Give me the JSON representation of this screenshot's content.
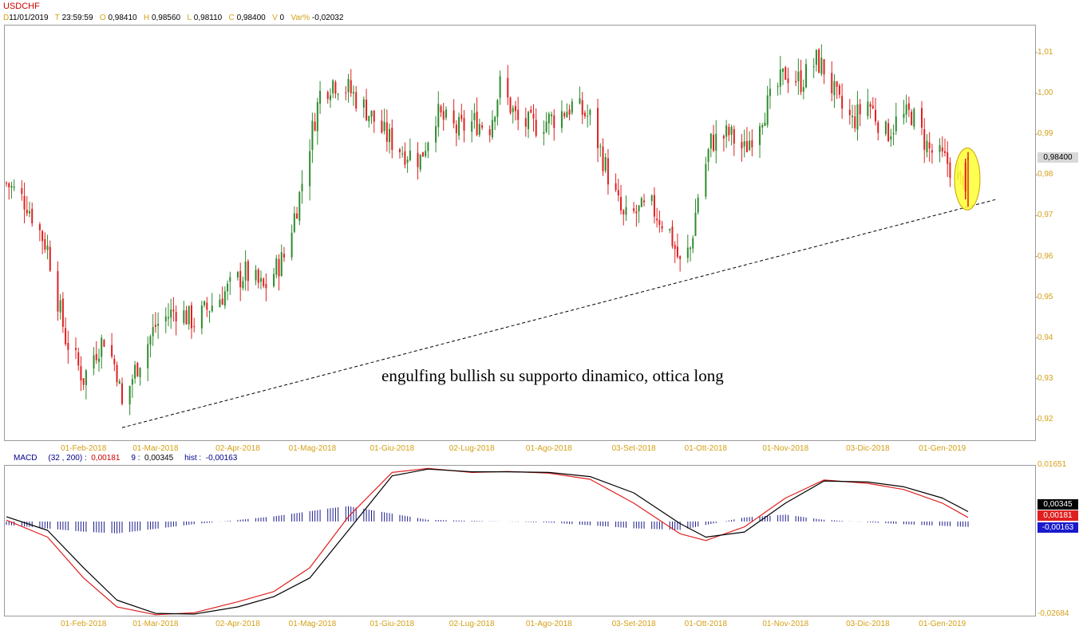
{
  "symbol": "USDCHF",
  "header": {
    "d_label": "D",
    "d_value": "11/01/2019",
    "t_label": "T",
    "t_value": "23:59:59",
    "o_label": "O",
    "o_value": "0,98410",
    "h_label": "H",
    "h_value": "0,98560",
    "l_label": "L",
    "l_value": "0,98110",
    "c_label": "C",
    "c_value": "0,98400",
    "v_label": "V",
    "v_value": "0",
    "var_label": "Var%",
    "var_value": "-0,02032"
  },
  "last_price": "0,98400",
  "annotation": "engulfing bullish su supporto dinamico, ottica long",
  "macd_header": {
    "label": "MACD",
    "params": "(32 , 200) :",
    "macd_value": "0,00181",
    "signal_label": "9 :",
    "signal_value": "0,00345",
    "hist_label": "hist :",
    "hist_value": "-0,00163"
  },
  "macd_axis": {
    "top": "0,01651",
    "bottom": "-0,02684"
  },
  "macd_boxes": {
    "signal": "0,00345",
    "macd": "0,00181",
    "hist": "-0,00163"
  },
  "colors": {
    "up": "#2e8b2e",
    "down": "#e02020",
    "axis_text": "#d4a017",
    "macd": "#e02020",
    "signal": "#000000",
    "hist": "#1a1a8c",
    "highlight": "#ffff33"
  },
  "chart_data": [
    {
      "type": "candlestick",
      "title": "USDCHF",
      "y_ticks": [
        "1,01",
        "1,00",
        "0,99",
        "0,98",
        "0,97",
        "0,96",
        "0,95",
        "0,94",
        "0,93",
        "0,92"
      ],
      "ylim": [
        0.9165,
        1.0185
      ],
      "x_ticks": [
        "01-Feb-2018",
        "01-Mar-2018",
        "02-Apr-2018",
        "01-Mag-2018",
        "01-Giu-2018",
        "02-Lug-2018",
        "01-Ago-2018",
        "03-Set-2018",
        "01-Ott-2018",
        "01-Nov-2018",
        "03-Dic-2018",
        "01-Gen-2019"
      ],
      "close_path": [
        {
          "date": "2018-01-02",
          "close": 0.978
        },
        {
          "date": "2018-01-10",
          "close": 0.973
        },
        {
          "date": "2018-01-18",
          "close": 0.962
        },
        {
          "date": "2018-01-25",
          "close": 0.94
        },
        {
          "date": "2018-02-01",
          "close": 0.93
        },
        {
          "date": "2018-02-05",
          "close": 0.936
        },
        {
          "date": "2018-02-09",
          "close": 0.94
        },
        {
          "date": "2018-02-14",
          "close": 0.932
        },
        {
          "date": "2018-02-16",
          "close": 0.923
        },
        {
          "date": "2018-02-21",
          "close": 0.932
        },
        {
          "date": "2018-03-01",
          "close": 0.943
        },
        {
          "date": "2018-03-09",
          "close": 0.947
        },
        {
          "date": "2018-03-16",
          "close": 0.944
        },
        {
          "date": "2018-03-26",
          "close": 0.95
        },
        {
          "date": "2018-04-05",
          "close": 0.956
        },
        {
          "date": "2018-04-12",
          "close": 0.952
        },
        {
          "date": "2018-04-20",
          "close": 0.96
        },
        {
          "date": "2018-04-26",
          "close": 0.975
        },
        {
          "date": "2018-04-30",
          "close": 0.988
        },
        {
          "date": "2018-05-04",
          "close": 1.0
        },
        {
          "date": "2018-05-09",
          "close": 1.003
        },
        {
          "date": "2018-05-15",
          "close": 1.001
        },
        {
          "date": "2018-05-22",
          "close": 0.996
        },
        {
          "date": "2018-05-29",
          "close": 0.99
        },
        {
          "date": "2018-06-05",
          "close": 0.986
        },
        {
          "date": "2018-06-12",
          "close": 0.984
        },
        {
          "date": "2018-06-18",
          "close": 0.995
        },
        {
          "date": "2018-06-26",
          "close": 0.991
        },
        {
          "date": "2018-07-03",
          "close": 0.993
        },
        {
          "date": "2018-07-09",
          "close": 0.992
        },
        {
          "date": "2018-07-13",
          "close": 1.002
        },
        {
          "date": "2018-07-20",
          "close": 0.993
        },
        {
          "date": "2018-07-26",
          "close": 0.992
        },
        {
          "date": "2018-08-03",
          "close": 0.994
        },
        {
          "date": "2018-08-10",
          "close": 0.997
        },
        {
          "date": "2018-08-17",
          "close": 0.994
        },
        {
          "date": "2018-08-24",
          "close": 0.98
        },
        {
          "date": "2018-08-30",
          "close": 0.969
        },
        {
          "date": "2018-09-05",
          "close": 0.971
        },
        {
          "date": "2018-09-10",
          "close": 0.972
        },
        {
          "date": "2018-09-17",
          "close": 0.966
        },
        {
          "date": "2018-09-21",
          "close": 0.958
        },
        {
          "date": "2018-09-25",
          "close": 0.962
        },
        {
          "date": "2018-09-28",
          "close": 0.975
        },
        {
          "date": "2018-10-03",
          "close": 0.988
        },
        {
          "date": "2018-10-10",
          "close": 0.99
        },
        {
          "date": "2018-10-16",
          "close": 0.986
        },
        {
          "date": "2018-10-22",
          "close": 0.994
        },
        {
          "date": "2018-10-26",
          "close": 0.998
        },
        {
          "date": "2018-11-01",
          "close": 1.005
        },
        {
          "date": "2018-11-07",
          "close": 1.003
        },
        {
          "date": "2018-11-13",
          "close": 1.008
        },
        {
          "date": "2018-11-16",
          "close": 1.006
        },
        {
          "date": "2018-11-22",
          "close": 0.997
        },
        {
          "date": "2018-11-27",
          "close": 0.993
        },
        {
          "date": "2018-12-03",
          "close": 0.998
        },
        {
          "date": "2018-12-10",
          "close": 0.99
        },
        {
          "date": "2018-12-14",
          "close": 0.993
        },
        {
          "date": "2018-12-20",
          "close": 0.995
        },
        {
          "date": "2018-12-27",
          "close": 0.986
        },
        {
          "date": "2019-01-03",
          "close": 0.983
        },
        {
          "date": "2019-01-08",
          "close": 0.978
        },
        {
          "date": "2019-01-11",
          "close": 0.984
        }
      ],
      "support_trendline": {
        "from": {
          "date": "2018-02-16",
          "value": 0.918
        },
        "to": {
          "date": "2019-01-22",
          "value": 0.974
        }
      },
      "highlight": {
        "date": "2019-01-11",
        "y_range": [
          0.972,
          0.986
        ],
        "shape": "ellipse"
      }
    },
    {
      "type": "line",
      "title": "MACD (32 , 200)",
      "ylim": [
        -0.02684,
        0.01651
      ],
      "series": [
        {
          "name": "MACD",
          "color": "#e02020",
          "points": [
            {
              "date": "2018-01-02",
              "value": 0.001
            },
            {
              "date": "2018-01-18",
              "value": -0.004
            },
            {
              "date": "2018-02-01",
              "value": -0.016
            },
            {
              "date": "2018-02-14",
              "value": -0.0245
            },
            {
              "date": "2018-03-01",
              "value": -0.0268
            },
            {
              "date": "2018-03-16",
              "value": -0.0262
            },
            {
              "date": "2018-04-02",
              "value": -0.023
            },
            {
              "date": "2018-04-16",
              "value": -0.02
            },
            {
              "date": "2018-04-30",
              "value": -0.013
            },
            {
              "date": "2018-05-15",
              "value": 0.002
            },
            {
              "date": "2018-06-01",
              "value": 0.015
            },
            {
              "date": "2018-06-15",
              "value": 0.0162
            },
            {
              "date": "2018-07-02",
              "value": 0.015
            },
            {
              "date": "2018-07-16",
              "value": 0.0153
            },
            {
              "date": "2018-08-01",
              "value": 0.0148
            },
            {
              "date": "2018-08-17",
              "value": 0.013
            },
            {
              "date": "2018-09-03",
              "value": 0.006
            },
            {
              "date": "2018-09-21",
              "value": -0.003
            },
            {
              "date": "2018-10-01",
              "value": -0.005
            },
            {
              "date": "2018-10-16",
              "value": -0.001
            },
            {
              "date": "2018-11-01",
              "value": 0.0075
            },
            {
              "date": "2018-11-16",
              "value": 0.0128
            },
            {
              "date": "2018-12-03",
              "value": 0.0118
            },
            {
              "date": "2018-12-17",
              "value": 0.01
            },
            {
              "date": "2019-01-01",
              "value": 0.006
            },
            {
              "date": "2019-01-11",
              "value": 0.0018
            }
          ]
        },
        {
          "name": "9",
          "color": "#000000",
          "points": [
            {
              "date": "2018-01-02",
              "value": 0.002
            },
            {
              "date": "2018-01-18",
              "value": -0.002
            },
            {
              "date": "2018-02-01",
              "value": -0.013
            },
            {
              "date": "2018-02-14",
              "value": -0.0225
            },
            {
              "date": "2018-03-01",
              "value": -0.0264
            },
            {
              "date": "2018-03-16",
              "value": -0.0266
            },
            {
              "date": "2018-04-02",
              "value": -0.0245
            },
            {
              "date": "2018-04-16",
              "value": -0.0215
            },
            {
              "date": "2018-04-30",
              "value": -0.016
            },
            {
              "date": "2018-05-15",
              "value": -0.002
            },
            {
              "date": "2018-06-01",
              "value": 0.014
            },
            {
              "date": "2018-06-15",
              "value": 0.016
            },
            {
              "date": "2018-07-02",
              "value": 0.0152
            },
            {
              "date": "2018-07-16",
              "value": 0.0152
            },
            {
              "date": "2018-08-01",
              "value": 0.015
            },
            {
              "date": "2018-08-17",
              "value": 0.0138
            },
            {
              "date": "2018-09-03",
              "value": 0.009
            },
            {
              "date": "2018-09-21",
              "value": 0.0
            },
            {
              "date": "2018-10-01",
              "value": -0.004
            },
            {
              "date": "2018-10-16",
              "value": -0.0025
            },
            {
              "date": "2018-11-01",
              "value": 0.006
            },
            {
              "date": "2018-11-16",
              "value": 0.0125
            },
            {
              "date": "2018-12-03",
              "value": 0.0122
            },
            {
              "date": "2018-12-17",
              "value": 0.0108
            },
            {
              "date": "2019-01-01",
              "value": 0.0075
            },
            {
              "date": "2019-01-11",
              "value": 0.0035
            }
          ]
        }
      ],
      "histogram": {
        "name": "hist",
        "color": "#1a1a8c",
        "points": [
          {
            "date": "2018-01-02",
            "value": -0.001
          },
          {
            "date": "2018-02-01",
            "value": -0.003
          },
          {
            "date": "2018-02-14",
            "value": -0.0035
          },
          {
            "date": "2018-03-16",
            "value": -0.0008
          },
          {
            "date": "2018-04-16",
            "value": 0.0015
          },
          {
            "date": "2018-05-09",
            "value": 0.004
          },
          {
            "date": "2018-05-15",
            "value": 0.0045
          },
          {
            "date": "2018-06-15",
            "value": 0.0005
          },
          {
            "date": "2018-08-01",
            "value": -0.0003
          },
          {
            "date": "2018-09-03",
            "value": -0.002
          },
          {
            "date": "2018-09-21",
            "value": -0.0025
          },
          {
            "date": "2018-10-16",
            "value": 0.0012
          },
          {
            "date": "2018-11-01",
            "value": 0.002
          },
          {
            "date": "2018-11-16",
            "value": 0.0005
          },
          {
            "date": "2018-12-17",
            "value": -0.0008
          },
          {
            "date": "2019-01-11",
            "value": -0.0016
          }
        ]
      }
    }
  ]
}
